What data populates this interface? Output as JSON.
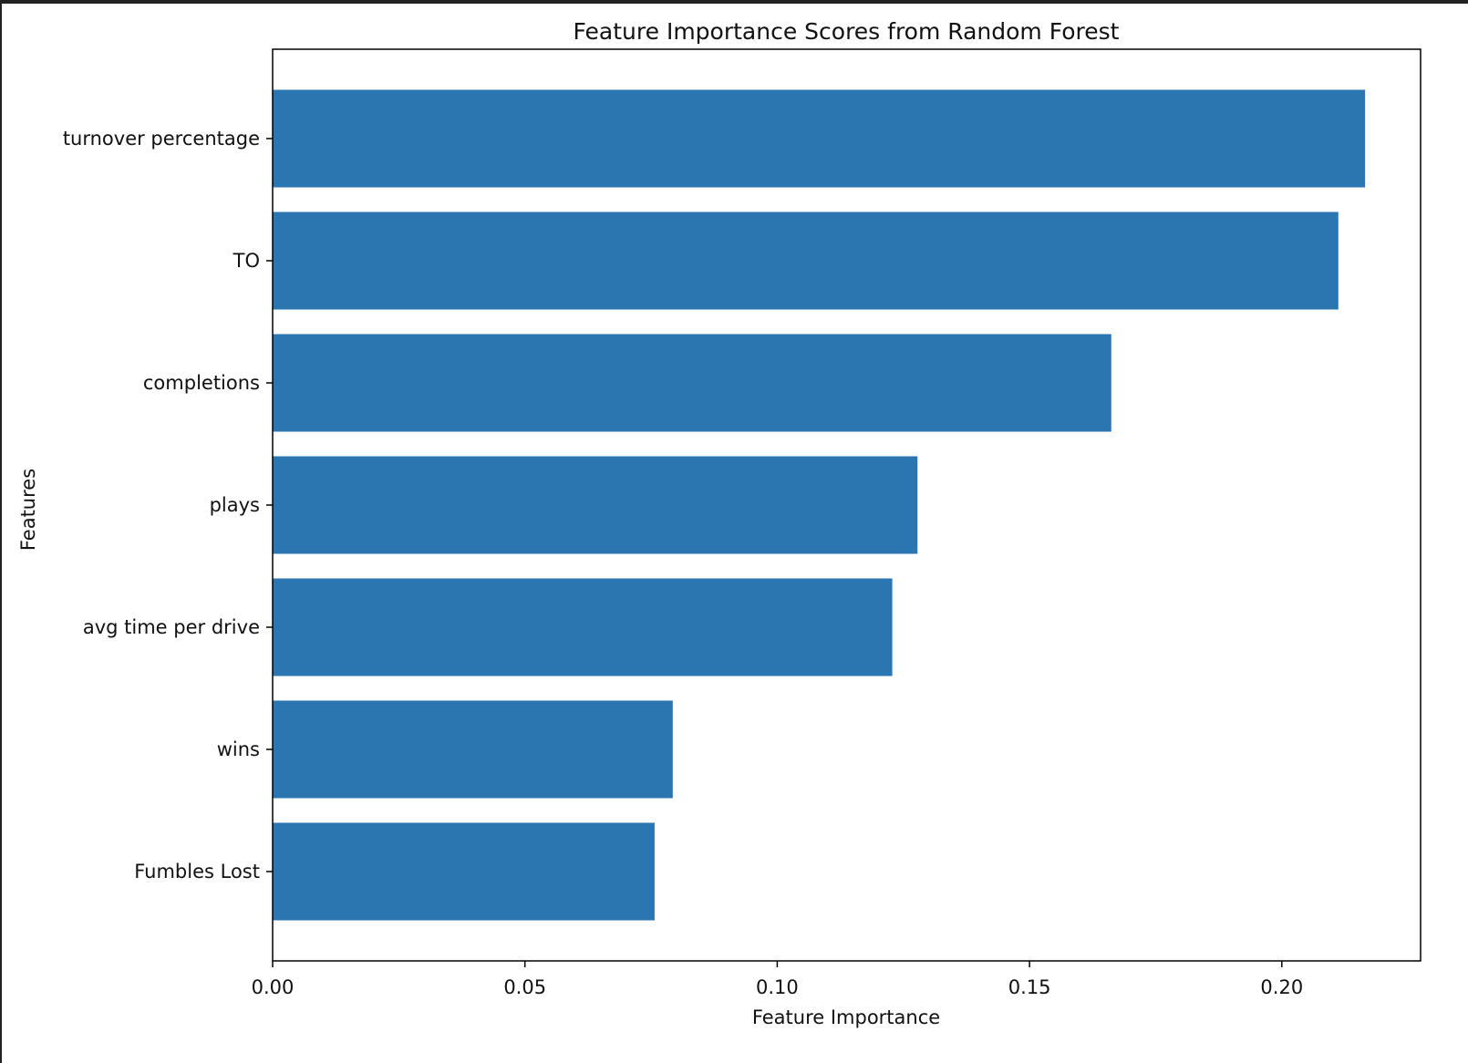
{
  "chart_data": {
    "type": "bar",
    "orientation": "horizontal",
    "title": "Feature Importance Scores from Random Forest",
    "xlabel": "Feature Importance",
    "ylabel": "Features",
    "categories": [
      "turnover percentage",
      "TO",
      "completions",
      "plays",
      "avg time per drive",
      "wins",
      "Fumbles Lost"
    ],
    "values": [
      0.2165,
      0.2112,
      0.1662,
      0.1278,
      0.1228,
      0.0793,
      0.0757
    ],
    "xlim": [
      0,
      0.2275
    ],
    "xticks": [
      "0.00",
      "0.05",
      "0.10",
      "0.15",
      "0.20"
    ],
    "xtick_values": [
      0,
      0.05,
      0.1,
      0.15,
      0.2
    ],
    "bar_color": "#2b76b0",
    "grid": false
  }
}
